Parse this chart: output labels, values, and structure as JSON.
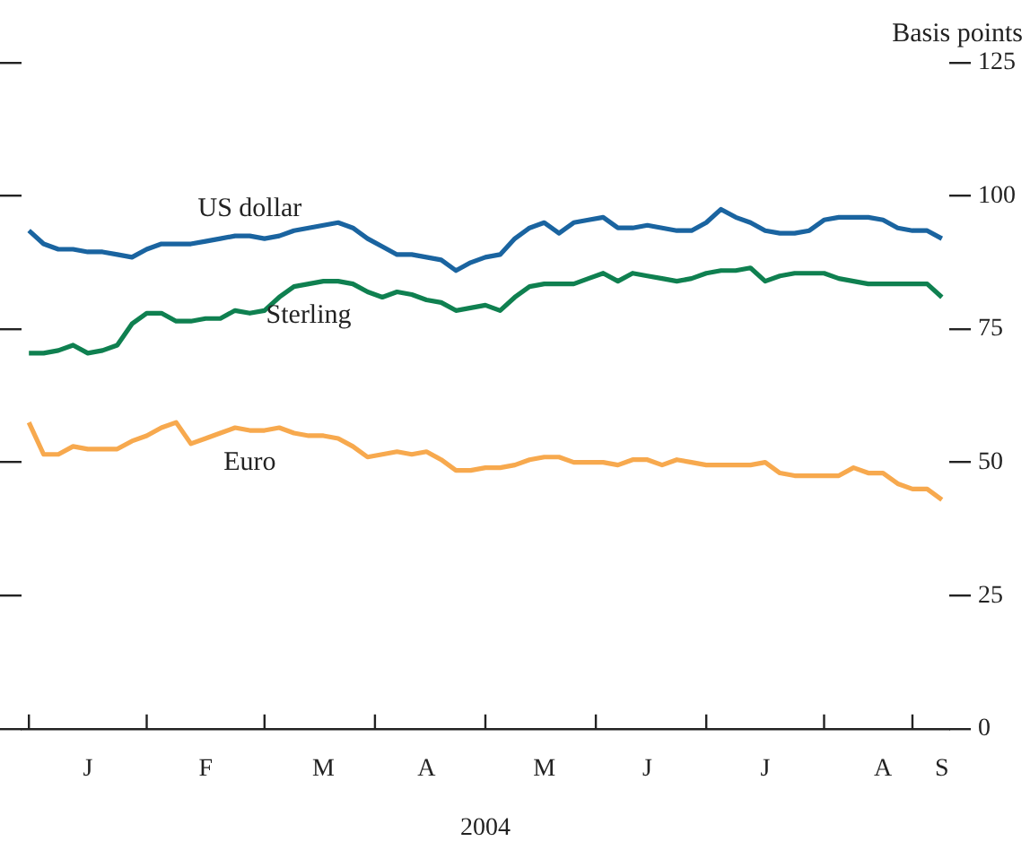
{
  "chart_data": {
    "type": "line",
    "xlabel": "2004",
    "ylabel": "Basis points",
    "categories": [
      null,
      null,
      null,
      null,
      "J",
      null,
      null,
      null,
      null,
      null,
      null,
      null,
      "F",
      null,
      null,
      null,
      null,
      null,
      null,
      null,
      "M",
      null,
      null,
      null,
      null,
      null,
      null,
      "A",
      null,
      null,
      null,
      null,
      null,
      null,
      null,
      "M",
      null,
      null,
      null,
      null,
      null,
      null,
      "J",
      null,
      null,
      null,
      null,
      null,
      null,
      null,
      "J",
      null,
      null,
      null,
      null,
      null,
      null,
      null,
      "A",
      null,
      null,
      null,
      "S"
    ],
    "ylim": [
      0,
      125
    ],
    "yticks": [
      0,
      25,
      50,
      75,
      100,
      125
    ],
    "marker": "none",
    "line_style": "solid",
    "series": [
      {
        "name": "US dollar",
        "color": "#1a64a0",
        "values": [
          93.5,
          91,
          90,
          90,
          89.5,
          89.5,
          89,
          88.5,
          90,
          91,
          91,
          91,
          91.5,
          92,
          92.5,
          92.5,
          92,
          92.5,
          93.5,
          94,
          94.5,
          95,
          94,
          92,
          90.5,
          89,
          89,
          88.5,
          88,
          86,
          87.5,
          88.5,
          89,
          92,
          94,
          95,
          93,
          95,
          95.5,
          96,
          94,
          94,
          94.5,
          94,
          93.5,
          93.5,
          95,
          97.5,
          96,
          95,
          93.5,
          93,
          93,
          93.5,
          95.5,
          96,
          96,
          96,
          95.5,
          94,
          93.5,
          93.5,
          92
        ]
      },
      {
        "name": "Sterling",
        "color": "#0f8050",
        "values": [
          70.5,
          70.5,
          71,
          72,
          70.5,
          71,
          72,
          76,
          78,
          78,
          76.5,
          76.5,
          77,
          77,
          78.5,
          78,
          78.5,
          81,
          83,
          83.5,
          84,
          84,
          83.5,
          82,
          81,
          82,
          81.5,
          80.5,
          80,
          78.5,
          79,
          79.5,
          78.5,
          81,
          83,
          83.5,
          83.5,
          83.5,
          84.5,
          85.5,
          84,
          85.5,
          85,
          84.5,
          84,
          84.5,
          85.5,
          86,
          86,
          86.5,
          84,
          85,
          85.5,
          85.5,
          85.5,
          84.5,
          84,
          83.5,
          83.5,
          83.5,
          83.5,
          83.5,
          81
        ]
      },
      {
        "name": "Euro",
        "color": "#f7a94e",
        "values": [
          57.5,
          51.5,
          51.5,
          53,
          52.5,
          52.5,
          52.5,
          54,
          55,
          56.5,
          57.5,
          53.5,
          54.5,
          55.5,
          56.5,
          56,
          56,
          56.5,
          55.5,
          55,
          55,
          54.5,
          53,
          51,
          51.5,
          52,
          51.5,
          52,
          50.5,
          48.5,
          48.5,
          49,
          49,
          49.5,
          50.5,
          51,
          51,
          50,
          50,
          50,
          49.5,
          50.5,
          50.5,
          49.5,
          50.5,
          50,
          49.5,
          49.5,
          49.5,
          49.5,
          50,
          48,
          47.5,
          47.5,
          47.5,
          47.5,
          49,
          48,
          48,
          46,
          45,
          45,
          43
        ]
      }
    ]
  }
}
